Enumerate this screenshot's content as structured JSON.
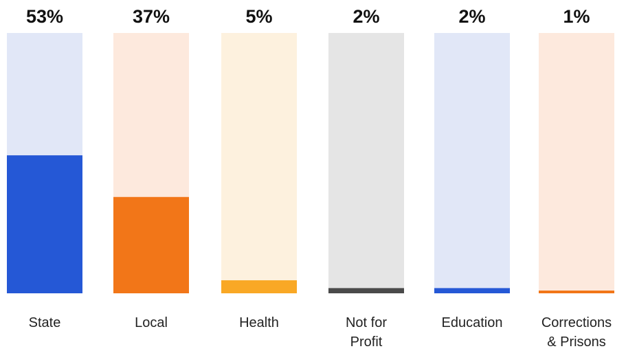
{
  "chart_data": {
    "type": "bar",
    "categories": [
      "State",
      "Local",
      "Health",
      "Not for Profit",
      "Education",
      "Corrections & Prisons"
    ],
    "category_lines": [
      [
        "State"
      ],
      [
        "Local"
      ],
      [
        "Health"
      ],
      [
        "Not for",
        "Profit"
      ],
      [
        "Education"
      ],
      [
        "Corrections",
        "& Prisons"
      ]
    ],
    "values": [
      53,
      37,
      5,
      2,
      2,
      1
    ],
    "value_labels": [
      "53%",
      "37%",
      "5%",
      "2%",
      "2%",
      "1%"
    ],
    "ylim": [
      0,
      100
    ],
    "grid": false,
    "bar_colors": [
      "#2558d6",
      "#f27618",
      "#f9a825",
      "#4a4a4a",
      "#2558d6",
      "#f27618"
    ],
    "track_colors": [
      "#e1e7f7",
      "#fde9dd",
      "#fdf1de",
      "#e5e5e5",
      "#e1e7f7",
      "#fde9dd"
    ]
  }
}
